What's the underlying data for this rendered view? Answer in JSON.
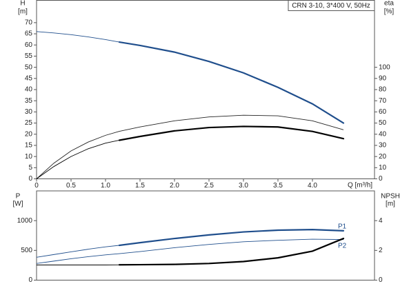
{
  "chart_data": [
    {
      "type": "line",
      "title": "CRN 3-10, 3*400 V, 50Hz",
      "ylabel": "H",
      "yunit": "[m]",
      "y2label": "eta",
      "y2unit": "[%]",
      "xlabel": "Q [m³/h]",
      "xlim": [
        0,
        4.9
      ],
      "xticks": [
        0,
        0.5,
        {
          "value": 1,
          "label": "1.0"
        },
        1.5,
        {
          "value": 2,
          "label": "2.0"
        },
        2.5,
        {
          "value": 3,
          "label": "3.0"
        },
        3.5,
        {
          "value": 4,
          "label": "4.0"
        }
      ],
      "ylim": [
        0,
        80
      ],
      "yticks": [
        0,
        5,
        10,
        15,
        20,
        25,
        30,
        35,
        40,
        45,
        50,
        55,
        60,
        65,
        70
      ],
      "y2lim": [
        0,
        160
      ],
      "y2ticks": [
        0,
        10,
        20,
        30,
        40,
        50,
        60,
        70,
        80,
        90,
        100
      ],
      "x": [
        0,
        0.25,
        0.5,
        0.75,
        1.0,
        1.2,
        1.5,
        2.0,
        2.5,
        3.0,
        3.5,
        4.0,
        4.45
      ],
      "series": [
        {
          "color": "#1f4e8c",
          "bold_from": 1.2,
          "values": [
            66,
            65.4,
            64.6,
            63.6,
            62.4,
            61.3,
            59.8,
            56.8,
            52.6,
            47.5,
            41,
            33.6,
            25
          ]
        },
        {
          "color": "#222222",
          "axis": "y2",
          "values": [
            0,
            14,
            25,
            33,
            39,
            42.6,
            46.5,
            52,
            55.5,
            57,
            56.5,
            52,
            44
          ]
        },
        {
          "color": "#000000",
          "axis": "y2",
          "bold_from": 1.2,
          "values": [
            0,
            11,
            20,
            27,
            32,
            34.6,
            38,
            43,
            46,
            47,
            46.5,
            42.5,
            36
          ]
        }
      ]
    },
    {
      "type": "line",
      "ylabel": "P",
      "yunit": "[W]",
      "y2label": "NPSH",
      "y2unit": "[m]",
      "xlim": [
        0,
        4.9
      ],
      "ylim": [
        0,
        1500
      ],
      "yticks": [
        0,
        500,
        1000
      ],
      "y2lim": [
        0,
        6
      ],
      "y2ticks": [
        0,
        2,
        4
      ],
      "x": [
        0,
        0.25,
        0.5,
        0.75,
        1.0,
        1.2,
        1.5,
        2.0,
        2.5,
        3.0,
        3.5,
        4.0,
        4.45
      ],
      "series": [
        {
          "name": "P1",
          "color": "#1f4e8c",
          "bold_from": 1.2,
          "values": [
            384,
            430,
            475,
            520,
            560,
            585,
            630,
            700,
            760,
            810,
            840,
            850,
            830
          ]
        },
        {
          "name": "P2",
          "color": "#1f4e8c",
          "values": [
            280,
            320,
            360,
            395,
            425,
            445,
            480,
            545,
            600,
            645,
            670,
            688,
            682
          ]
        },
        {
          "color": "#000000",
          "axis": "y2",
          "bold_from": 1.2,
          "values": [
            1.02,
            1.02,
            1.02,
            1.02,
            1.02,
            1.03,
            1.04,
            1.06,
            1.12,
            1.25,
            1.5,
            1.95,
            2.8
          ]
        }
      ]
    }
  ]
}
